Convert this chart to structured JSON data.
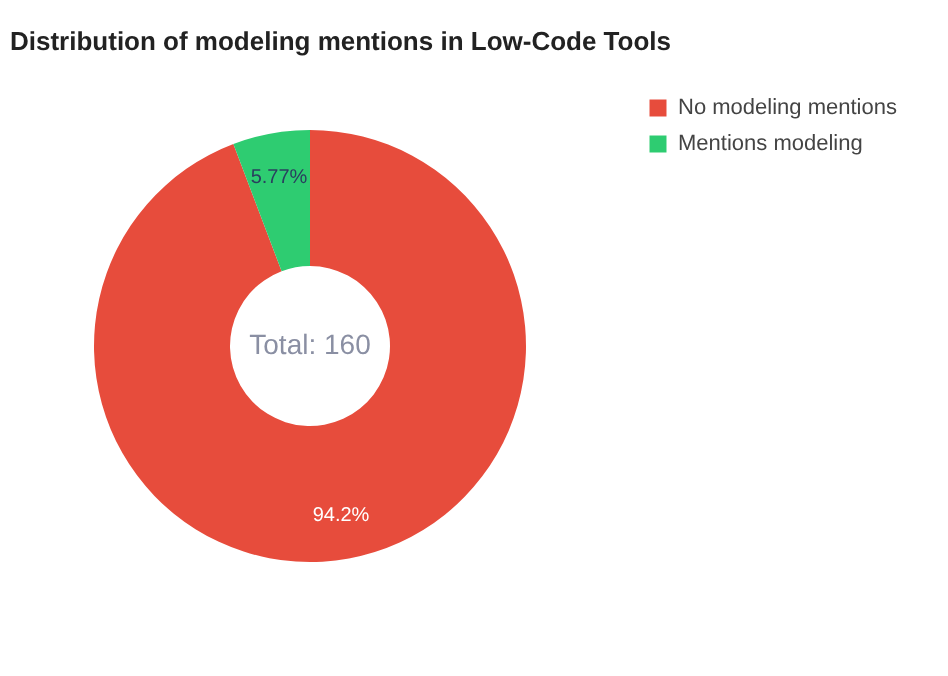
{
  "chart_data": {
    "type": "donut",
    "title": "Distribution of modeling mentions in Low-Code Tools",
    "categories": [
      "No modeling mentions",
      "Mentions modeling"
    ],
    "values": [
      94.2,
      5.77
    ],
    "colors": [
      "#e74c3c",
      "#2ecc71"
    ],
    "value_labels": [
      "94.2%",
      "5.77%"
    ],
    "annotations": [
      "Total: 160"
    ],
    "legend": "top right"
  }
}
